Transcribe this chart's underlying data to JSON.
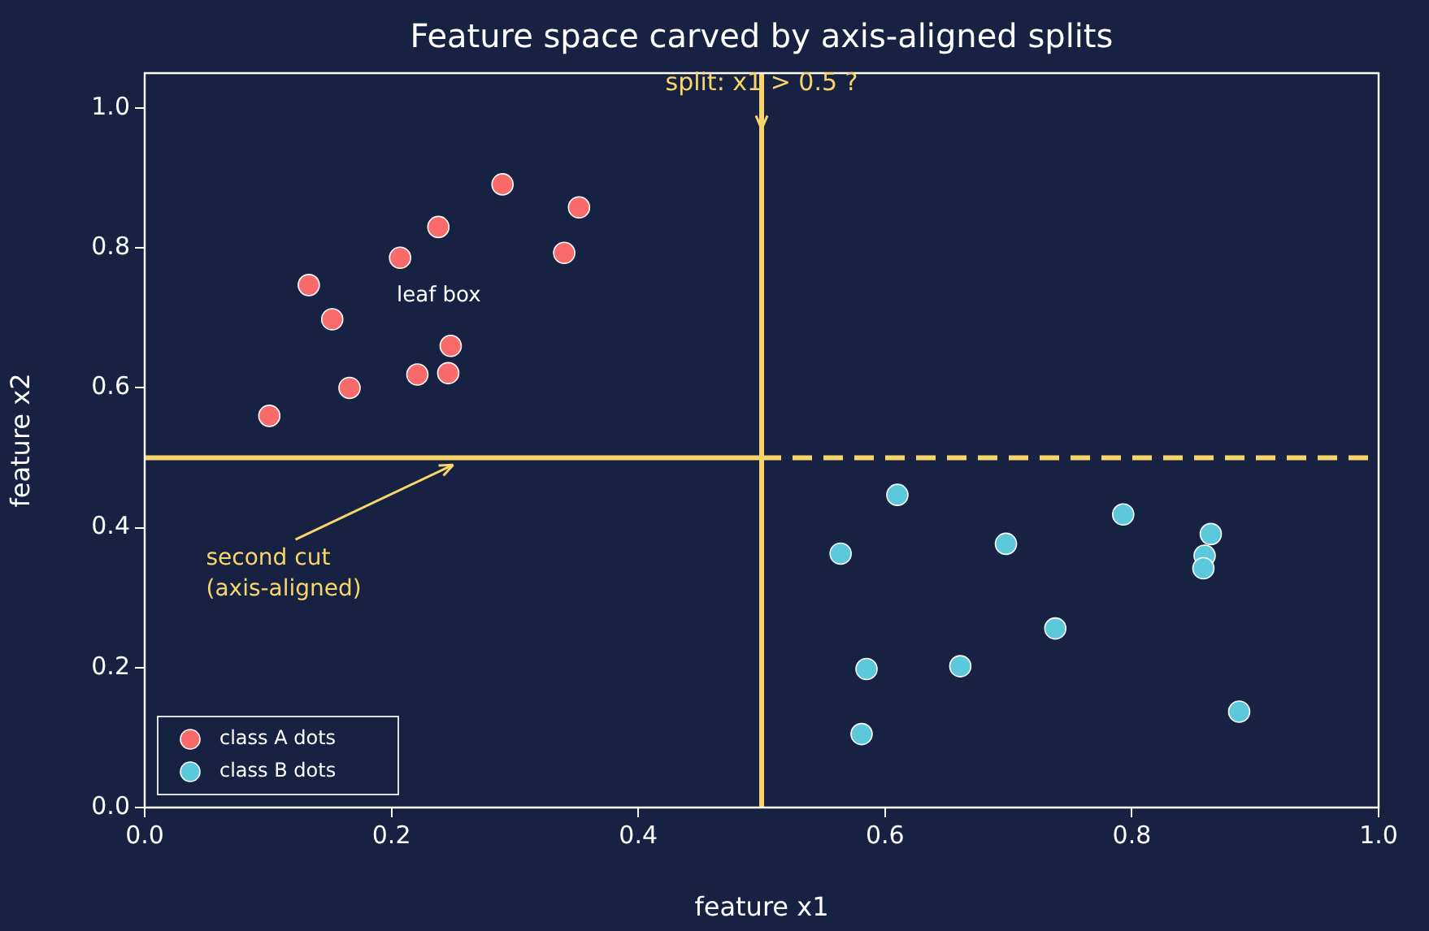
{
  "chart_data": {
    "type": "scatter",
    "title": "Feature space carved by axis-aligned splits",
    "xlabel": "feature x1",
    "ylabel": "feature x2",
    "xlim": [
      0,
      1
    ],
    "ylim": [
      0,
      1.05
    ],
    "xticks": [
      {
        "value": 0,
        "label": "0.0"
      },
      0.2,
      0.4,
      0.6,
      0.8,
      {
        "value": 1,
        "label": "1.0"
      }
    ],
    "yticks": [
      {
        "value": 0,
        "label": "0.0"
      },
      0.2,
      0.4,
      0.6,
      0.8,
      {
        "value": 1,
        "label": "1.0"
      }
    ],
    "grid": false,
    "legend": "bottom left",
    "series": [
      {
        "name": "class A dots",
        "color": "#f96b6b",
        "marker": "circle",
        "x": [
          0.101,
          0.133,
          0.152,
          0.166,
          0.207,
          0.221,
          0.238,
          0.246,
          0.248,
          0.29,
          0.34,
          0.352
        ],
        "values": [
          0.56,
          0.747,
          0.698,
          0.6,
          0.786,
          0.619,
          0.83,
          0.621,
          0.66,
          0.891,
          0.793,
          0.858
        ]
      },
      {
        "name": "class B dots",
        "color": "#5bc8dc",
        "marker": "circle",
        "x": [
          0.564,
          0.61,
          0.585,
          0.581,
          0.661,
          0.698,
          0.738,
          0.793,
          0.864,
          0.859,
          0.858,
          0.887
        ],
        "values": [
          0.363,
          0.447,
          0.198,
          0.105,
          0.202,
          0.377,
          0.256,
          0.419,
          0.391,
          0.36,
          0.342,
          0.137
        ]
      },
      {
        "type": "line",
        "color": "#f7d56a",
        "line_style": "solid",
        "x": [
          0,
          0.5
        ],
        "values": [
          0.5,
          0.5
        ]
      },
      {
        "type": "line",
        "color": "#f7d56a",
        "line_style": "dashed",
        "x": [
          0.5,
          1
        ],
        "values": [
          0.5,
          0.5
        ]
      }
    ],
    "ref_lines": [
      {
        "axis": "x",
        "value": 0.5,
        "color": "#f7d56a",
        "line_style": "solid"
      }
    ],
    "annotations": [
      {
        "text": "split: x1 > 0.5 ?",
        "x": 0.5,
        "y": 0.97
      },
      "leaf box",
      {
        "text": "second cut\n(axis-aligned)",
        "x": 0.25,
        "y": 0.49
      }
    ]
  }
}
